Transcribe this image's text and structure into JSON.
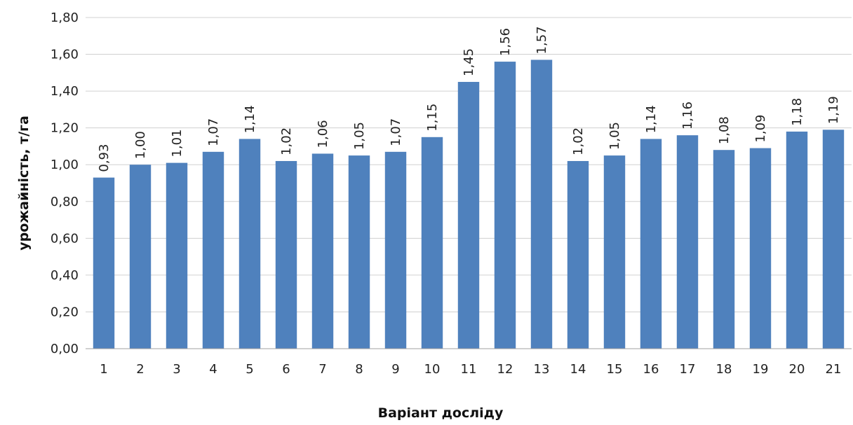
{
  "chart_data": {
    "type": "bar",
    "title": "",
    "xlabel": "Варіант досліду",
    "ylabel": "урожайність, т/га",
    "ylim": [
      0,
      1.8
    ],
    "y_ticks": [
      "0,00",
      "0,20",
      "0,40",
      "0,60",
      "0,80",
      "1,00",
      "1,20",
      "1,40",
      "1,60",
      "1,80"
    ],
    "y_tick_values": [
      0,
      0.2,
      0.4,
      0.6,
      0.8,
      1.0,
      1.2,
      1.4,
      1.6,
      1.8
    ],
    "grid": true,
    "legend": "none",
    "bar_color": "#4f81bd",
    "categories": [
      "1",
      "2",
      "3",
      "4",
      "5",
      "6",
      "7",
      "8",
      "9",
      "10",
      "11",
      "12",
      "13",
      "14",
      "15",
      "16",
      "17",
      "18",
      "19",
      "20",
      "21"
    ],
    "values": [
      0.93,
      1.0,
      1.01,
      1.07,
      1.14,
      1.02,
      1.06,
      1.05,
      1.07,
      1.15,
      1.45,
      1.56,
      1.57,
      1.02,
      1.05,
      1.14,
      1.16,
      1.08,
      1.09,
      1.18,
      1.19
    ],
    "data_labels": [
      "0,93",
      "1,00",
      "1,01",
      "1,07",
      "1,14",
      "1,02",
      "1,06",
      "1,05",
      "1,07",
      "1,15",
      "1,45",
      "1,56",
      "1,57",
      "1,02",
      "1,05",
      "1,14",
      "1,16",
      "1,08",
      "1,09",
      "1,18",
      "1,19"
    ]
  }
}
